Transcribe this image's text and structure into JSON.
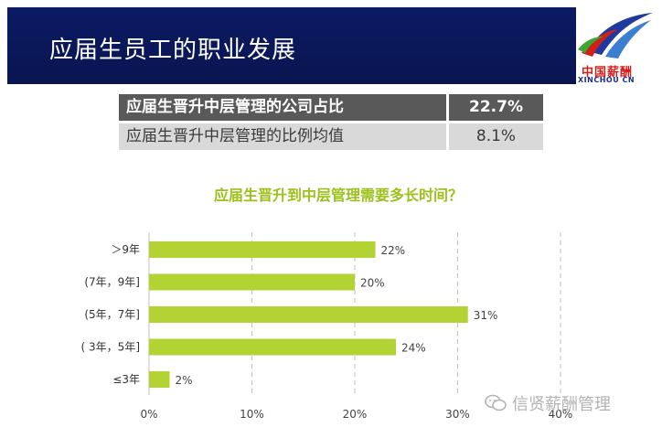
{
  "header": {
    "title": "应届生员工的职业发展",
    "logo_cn": "中国薪酬",
    "logo_en": "XINCHOU CN"
  },
  "stats": [
    {
      "label": "应届生晋升中层管理的公司占比",
      "value": "22.7%"
    },
    {
      "label": "应届生晋升中层管理的比例均值",
      "value": "8.1%"
    }
  ],
  "chart_data": {
    "type": "bar",
    "orientation": "horizontal",
    "title": "应届生晋升到中层管理需要多长时间？",
    "categories": [
      "＞9年",
      "(7年，9年]",
      "(5年，7年]",
      "( 3年，5年]",
      "≤3年"
    ],
    "values": [
      22,
      20,
      31,
      24,
      2
    ],
    "value_labels": [
      "22%",
      "20%",
      "31%",
      "24%",
      "2%"
    ],
    "xlim": [
      0,
      40
    ],
    "xticks": [
      "0%",
      "10%",
      "20%",
      "30%",
      "40%"
    ],
    "grid": true,
    "color": "#b3d334"
  },
  "watermark": {
    "text": "信贤薪酬管理",
    "icon": "wechat-icon"
  }
}
